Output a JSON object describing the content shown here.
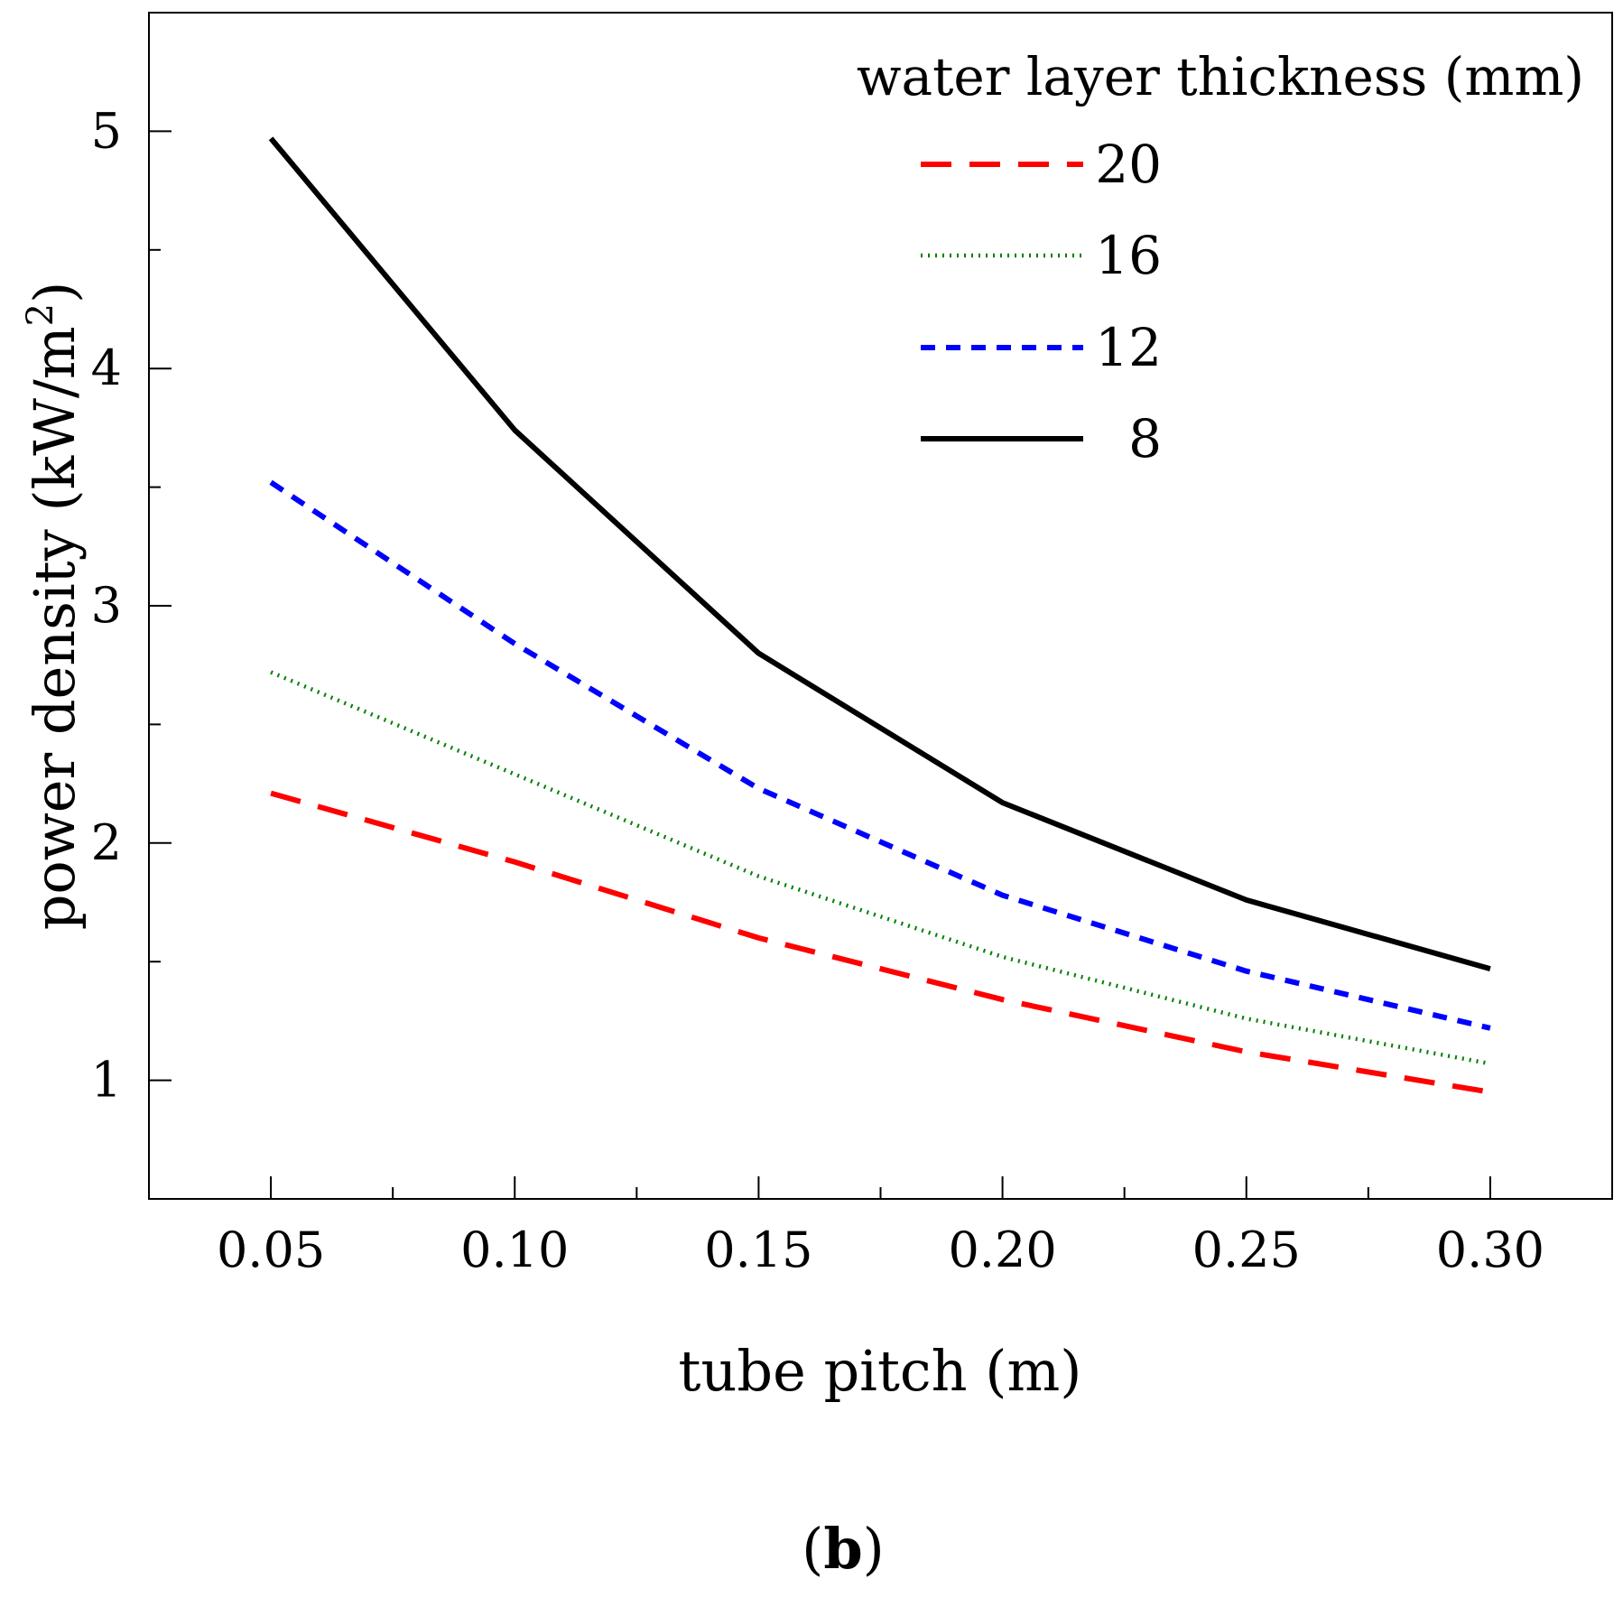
{
  "chart_data": {
    "type": "line",
    "title": "",
    "xlabel": "tube pitch (m)",
    "ylabel_main": "power density (kW/m",
    "ylabel_sup": "2",
    "ylabel_close": ")",
    "xlim": [
      0.025,
      0.325
    ],
    "ylim": [
      0.5,
      5.5
    ],
    "x": [
      0.05,
      0.1,
      0.15,
      0.2,
      0.25,
      0.3
    ],
    "x_tick_labels": [
      "0.05",
      "0.10",
      "0.15",
      "0.20",
      "0.25",
      "0.30"
    ],
    "x_minor_ticks": [
      0.075,
      0.125,
      0.175,
      0.225,
      0.275
    ],
    "y_ticks": [
      1,
      2,
      3,
      4,
      5
    ],
    "y_tick_labels": [
      "1",
      "2",
      "3",
      "4",
      "5"
    ],
    "y_minor_ticks": [
      1.5,
      2.5,
      3.5,
      4.5
    ],
    "grid": false,
    "legend_title": "water layer thickness (mm)",
    "legend_position": "top-right",
    "series": [
      {
        "name": "20",
        "color": "#ff0000",
        "style": "dashed",
        "values": [
          2.21,
          1.92,
          1.6,
          1.34,
          1.12,
          0.95
        ]
      },
      {
        "name": "16",
        "color": "#008000",
        "style": "dotted",
        "values": [
          2.72,
          2.29,
          1.86,
          1.52,
          1.26,
          1.07
        ]
      },
      {
        "name": "12",
        "color": "#0000ff",
        "style": "short-dashed",
        "values": [
          3.52,
          2.84,
          2.23,
          1.78,
          1.46,
          1.22
        ]
      },
      {
        "name": "8",
        "color": "#000000",
        "style": "solid",
        "values": [
          4.97,
          3.74,
          2.8,
          2.17,
          1.76,
          1.47
        ]
      }
    ]
  },
  "panel_label_open": "(",
  "panel_label_letter": "b",
  "panel_label_close": ")"
}
